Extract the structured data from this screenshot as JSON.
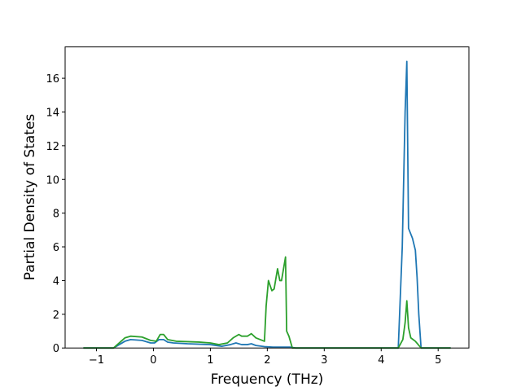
{
  "chart_data": {
    "type": "line",
    "x_label": "Frequency (THz)",
    "y_label": "Partial Density of States",
    "xlim": [
      -1.55,
      5.54
    ],
    "ylim": [
      0,
      17.86
    ],
    "xticks": [
      {
        "value": -1,
        "label": "−1"
      },
      0,
      1,
      2,
      3,
      4,
      5
    ],
    "yticks": [
      0,
      2,
      4,
      6,
      8,
      10,
      12,
      14,
      16
    ],
    "series": [
      {
        "color": "#1f77b4",
        "x": [
          -1.23,
          -0.7,
          -0.5,
          -0.4,
          -0.2,
          -0.05,
          0.02,
          0.1,
          0.18,
          0.25,
          0.35,
          0.6,
          1.0,
          1.2,
          1.35,
          1.45,
          1.55,
          1.65,
          1.72,
          1.8,
          1.95,
          2.1,
          2.4,
          2.5,
          4.3,
          4.37,
          4.42,
          4.45,
          4.48,
          4.55,
          4.6,
          4.63,
          4.66,
          4.7,
          5.22
        ],
        "values": [
          0,
          0,
          0.4,
          0.5,
          0.45,
          0.3,
          0.3,
          0.5,
          0.5,
          0.35,
          0.3,
          0.25,
          0.2,
          0.1,
          0.2,
          0.3,
          0.2,
          0.2,
          0.25,
          0.15,
          0.08,
          0.05,
          0.05,
          0,
          0,
          6.0,
          14.0,
          17.0,
          7.1,
          6.5,
          5.8,
          4.2,
          2.0,
          0,
          0
        ]
      },
      {
        "color": "#2ca02c",
        "x": [
          -1.23,
          -0.7,
          -0.5,
          -0.4,
          -0.2,
          -0.05,
          0.05,
          0.12,
          0.18,
          0.25,
          0.4,
          0.8,
          1.0,
          1.15,
          1.3,
          1.4,
          1.5,
          1.55,
          1.65,
          1.72,
          1.8,
          1.95,
          1.98,
          2.02,
          2.08,
          2.12,
          2.18,
          2.22,
          2.25,
          2.32,
          2.34,
          2.38,
          2.44,
          4.3,
          4.38,
          4.42,
          4.45,
          4.48,
          4.52,
          4.6,
          4.65,
          4.7,
          5.22
        ],
        "values": [
          0,
          0,
          0.6,
          0.7,
          0.65,
          0.45,
          0.4,
          0.8,
          0.8,
          0.5,
          0.4,
          0.35,
          0.3,
          0.2,
          0.3,
          0.6,
          0.8,
          0.7,
          0.7,
          0.85,
          0.6,
          0.4,
          2.5,
          4.0,
          3.4,
          3.5,
          4.7,
          4.0,
          4.0,
          5.4,
          1.0,
          0.7,
          0,
          0,
          0.5,
          1.5,
          2.8,
          1.2,
          0.6,
          0.4,
          0.2,
          0,
          0
        ]
      }
    ]
  }
}
